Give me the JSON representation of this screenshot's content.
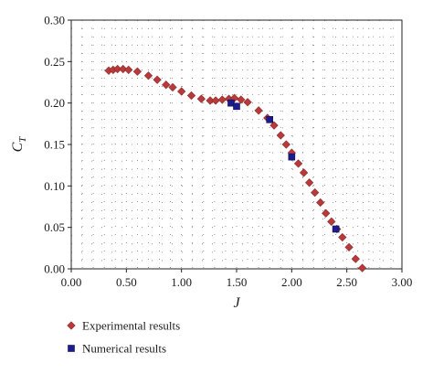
{
  "chart_data": {
    "type": "scatter",
    "xlabel": "J",
    "ylabel": "C",
    "ylabel_subscript": "T",
    "xlim": [
      0.0,
      3.0
    ],
    "ylim": [
      0.0,
      0.3
    ],
    "x_ticks": [
      "0.00",
      "0.50",
      "1.00",
      "1.50",
      "2.00",
      "2.50",
      "3.00"
    ],
    "y_ticks": [
      "0.00",
      "0.05",
      "0.10",
      "0.15",
      "0.20",
      "0.25",
      "0.30"
    ],
    "grid": "dotted",
    "legend_position": "bottom-left (below plot)",
    "series": [
      {
        "name": "Experimental results",
        "marker": "diamond",
        "color": "#b83a3a",
        "points": [
          [
            0.34,
            0.239
          ],
          [
            0.38,
            0.24
          ],
          [
            0.42,
            0.241
          ],
          [
            0.47,
            0.241
          ],
          [
            0.52,
            0.24
          ],
          [
            0.6,
            0.238
          ],
          [
            0.7,
            0.233
          ],
          [
            0.78,
            0.228
          ],
          [
            0.86,
            0.222
          ],
          [
            0.92,
            0.219
          ],
          [
            1.0,
            0.214
          ],
          [
            1.09,
            0.209
          ],
          [
            1.18,
            0.205
          ],
          [
            1.26,
            0.203
          ],
          [
            1.31,
            0.203
          ],
          [
            1.37,
            0.204
          ],
          [
            1.43,
            0.205
          ],
          [
            1.48,
            0.206
          ],
          [
            1.54,
            0.204
          ],
          [
            1.6,
            0.201
          ],
          [
            1.7,
            0.191
          ],
          [
            1.78,
            0.182
          ],
          [
            1.84,
            0.173
          ],
          [
            1.9,
            0.161
          ],
          [
            1.95,
            0.15
          ],
          [
            2.0,
            0.14
          ],
          [
            2.06,
            0.127
          ],
          [
            2.11,
            0.116
          ],
          [
            2.16,
            0.104
          ],
          [
            2.21,
            0.092
          ],
          [
            2.26,
            0.08
          ],
          [
            2.31,
            0.067
          ],
          [
            2.36,
            0.057
          ],
          [
            2.41,
            0.048
          ],
          [
            2.46,
            0.038
          ],
          [
            2.52,
            0.026
          ],
          [
            2.58,
            0.012
          ],
          [
            2.64,
            0.001
          ]
        ]
      },
      {
        "name": "Numerical results",
        "marker": "square",
        "color": "#1c1c8c",
        "points": [
          [
            1.45,
            0.2
          ],
          [
            1.5,
            0.196
          ],
          [
            1.8,
            0.18
          ],
          [
            2.0,
            0.135
          ],
          [
            2.4,
            0.048
          ]
        ]
      }
    ]
  }
}
